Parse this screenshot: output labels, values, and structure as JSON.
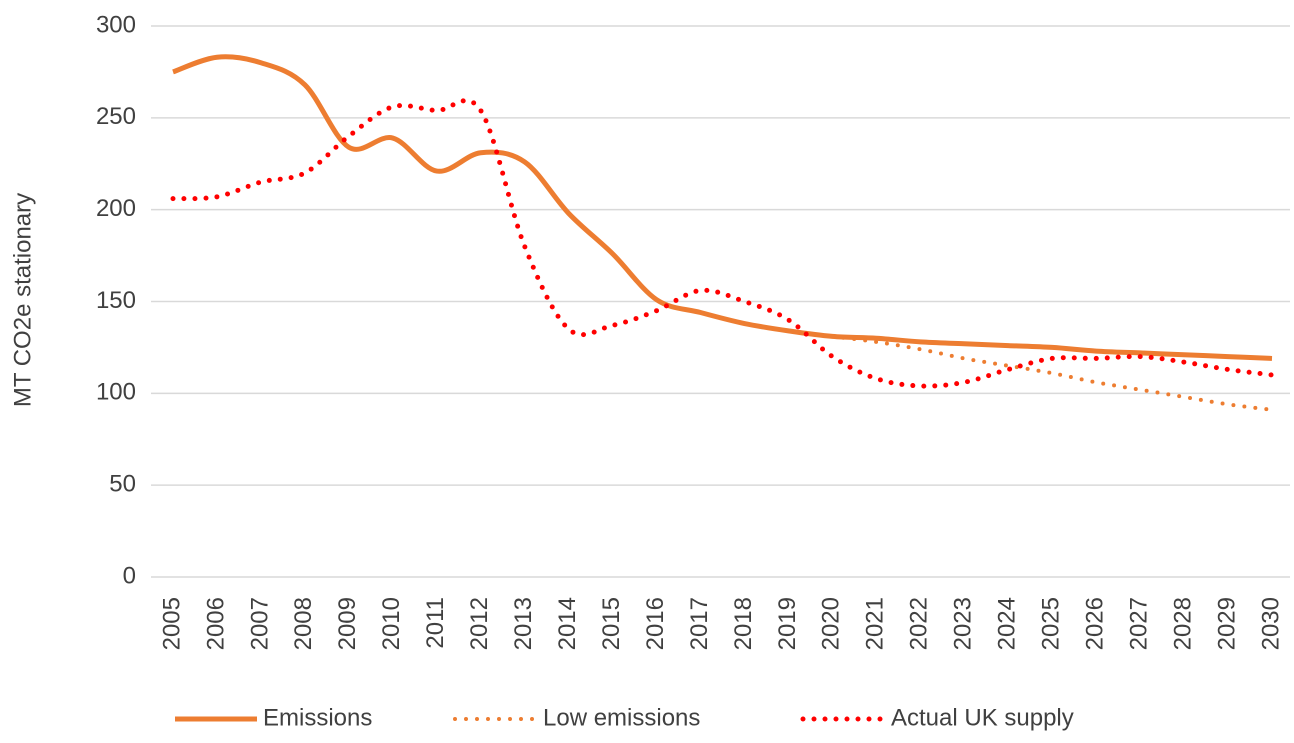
{
  "chart_data": {
    "type": "line",
    "ylabel": "MT CO2e stationary",
    "categories": [
      "2005",
      "2006",
      "2007",
      "2008",
      "2009",
      "2010",
      "2011",
      "2012",
      "2013",
      "2014",
      "2015",
      "2016",
      "2017",
      "2018",
      "2019",
      "2020",
      "2021",
      "2022",
      "2023",
      "2024",
      "2025",
      "2026",
      "2027",
      "2028",
      "2029",
      "2030"
    ],
    "series": [
      {
        "name": "Emissions",
        "color": "#ed7d31",
        "style": "solid",
        "values": [
          275,
          283,
          280,
          268,
          234,
          239,
          221,
          231,
          226,
          198,
          176,
          151,
          144,
          138,
          134,
          131,
          130,
          128,
          127,
          126,
          125,
          123,
          122,
          121,
          120,
          119
        ]
      },
      {
        "name": "Low emissions",
        "color": "#ed7d31",
        "style": "dot",
        "values": [
          null,
          null,
          null,
          null,
          null,
          null,
          null,
          null,
          null,
          null,
          null,
          null,
          null,
          null,
          null,
          131,
          128,
          124,
          119,
          115,
          111,
          106,
          102,
          98,
          94,
          91
        ]
      },
      {
        "name": "Actual UK supply",
        "color": "#ff0000",
        "style": "dot",
        "values": [
          206,
          207,
          215,
          220,
          240,
          256,
          254,
          254,
          180,
          135,
          137,
          145,
          156,
          150,
          140,
          120,
          108,
          104,
          106,
          113,
          119,
          119,
          120,
          117,
          113,
          110
        ]
      }
    ],
    "ylim": [
      0,
      300
    ],
    "yticks": [
      0,
      50,
      100,
      150,
      200,
      250,
      300
    ],
    "grid": true,
    "legend": "bottom"
  }
}
